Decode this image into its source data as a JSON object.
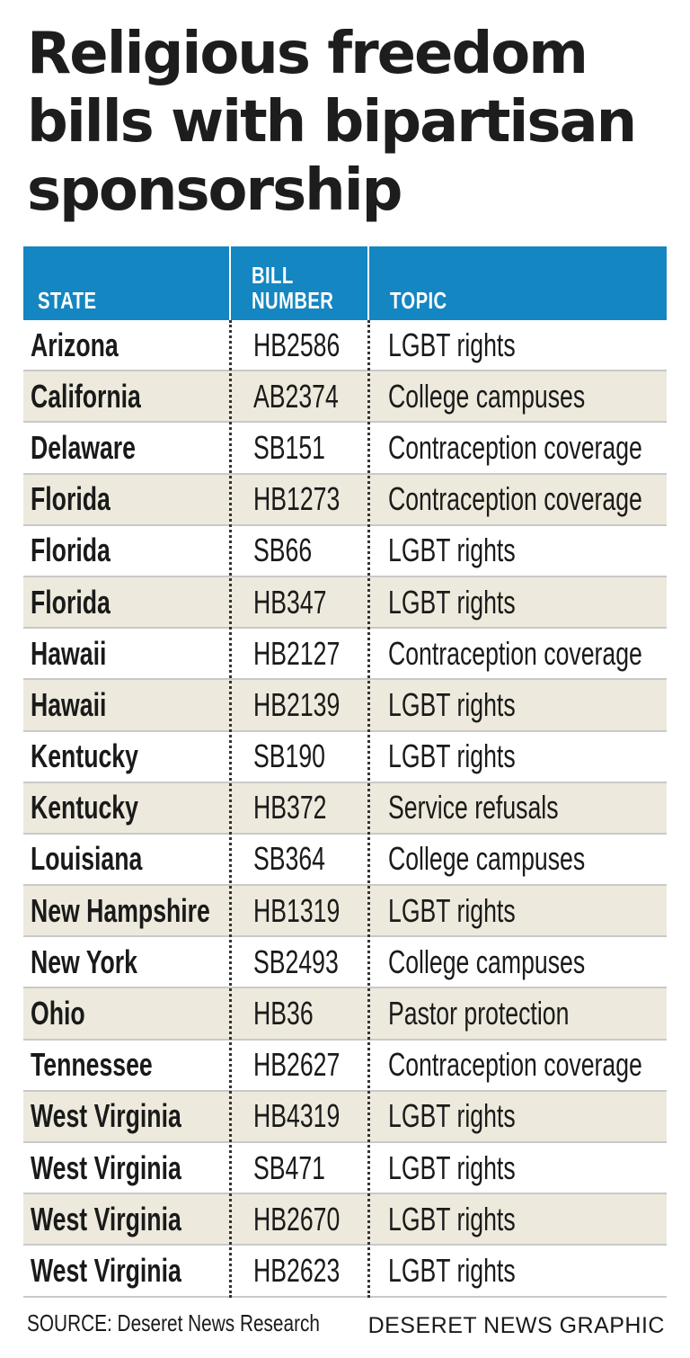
{
  "title": "Religious freedom bills with bipartisan sponsorship",
  "chart_data": {
    "type": "table",
    "title": "Religious freedom bills with bipartisan sponsorship",
    "columns": [
      "STATE",
      "BILL NUMBER",
      "TOPIC"
    ],
    "column_lines": [
      [
        "STATE"
      ],
      [
        "BILL",
        "NUMBER"
      ],
      [
        "TOPIC"
      ]
    ],
    "rows": [
      {
        "state": "Arizona",
        "bill": "HB2586",
        "topic": "LGBT rights"
      },
      {
        "state": "California",
        "bill": "AB2374",
        "topic": "College campuses"
      },
      {
        "state": "Delaware",
        "bill": "SB151",
        "topic": "Contraception coverage"
      },
      {
        "state": "Florida",
        "bill": "HB1273",
        "topic": "Contraception coverage"
      },
      {
        "state": "Florida",
        "bill": "SB66",
        "topic": "LGBT rights"
      },
      {
        "state": "Florida",
        "bill": "HB347",
        "topic": "LGBT rights"
      },
      {
        "state": "Hawaii",
        "bill": "HB2127",
        "topic": "Contraception coverage"
      },
      {
        "state": "Hawaii",
        "bill": "HB2139",
        "topic": "LGBT rights"
      },
      {
        "state": "Kentucky",
        "bill": "SB190",
        "topic": "LGBT rights"
      },
      {
        "state": "Kentucky",
        "bill": "HB372",
        "topic": "Service refusals"
      },
      {
        "state": "Louisiana",
        "bill": "SB364",
        "topic": "College campuses"
      },
      {
        "state": "New Hampshire",
        "bill": "HB1319",
        "topic": "LGBT rights"
      },
      {
        "state": "New York",
        "bill": "SB2493",
        "topic": "College campuses"
      },
      {
        "state": "Ohio",
        "bill": "HB36",
        "topic": "Pastor protection"
      },
      {
        "state": "Tennessee",
        "bill": "HB2627",
        "topic": "Contraception coverage"
      },
      {
        "state": "West Virginia",
        "bill": "HB4319",
        "topic": "LGBT rights"
      },
      {
        "state": "West Virginia",
        "bill": "SB471",
        "topic": "LGBT rights"
      },
      {
        "state": "West Virginia",
        "bill": "HB2670",
        "topic": "LGBT rights"
      },
      {
        "state": "West Virginia",
        "bill": "HB2623",
        "topic": "LGBT rights"
      }
    ]
  },
  "footer": {
    "source": "SOURCE: Deseret News Research",
    "credit": "DESERET NEWS GRAPHIC"
  },
  "colors": {
    "header_bg": "#1486c2",
    "shaded_row": "#ede9dc"
  }
}
